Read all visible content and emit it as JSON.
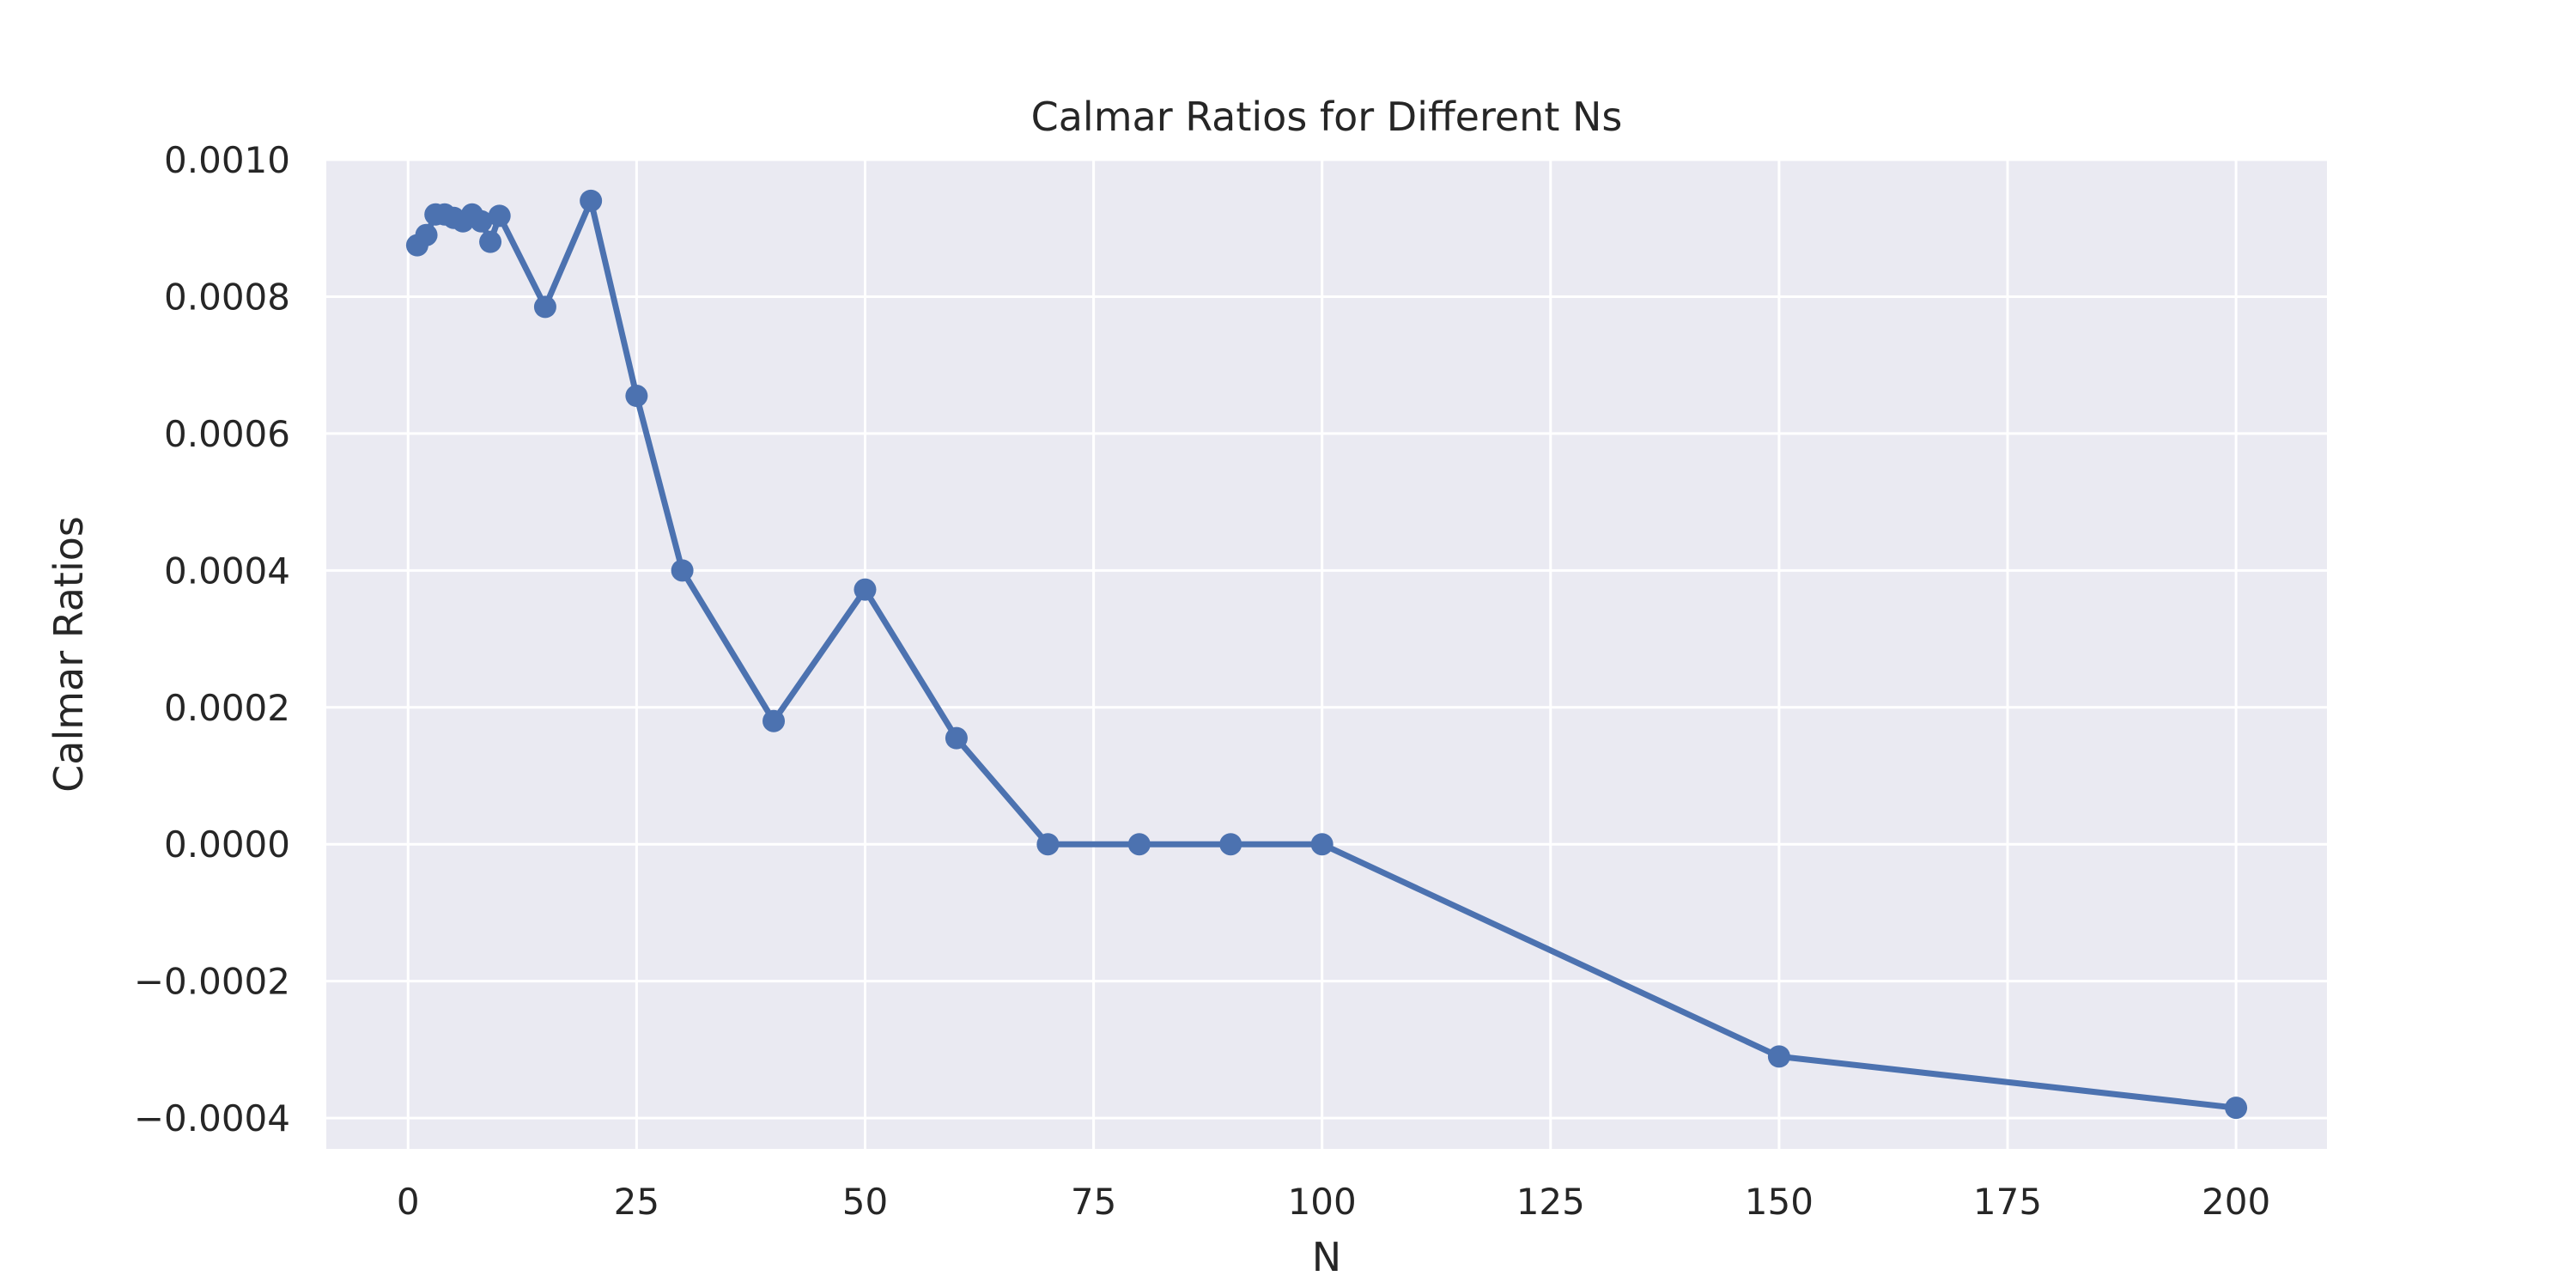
{
  "chart_data": {
    "type": "line",
    "title": "Calmar Ratios for Different Ns",
    "xlabel": "N",
    "ylabel": "Calmar Ratios",
    "xlim": [
      -8.95,
      209.95
    ],
    "ylim": [
      -0.000445,
      0.001
    ],
    "x_ticks": [
      0,
      25,
      50,
      75,
      100,
      125,
      150,
      175,
      200
    ],
    "x_tick_labels": [
      "0",
      "25",
      "50",
      "75",
      "100",
      "125",
      "150",
      "175",
      "200"
    ],
    "y_ticks": [
      -0.0004,
      -0.0002,
      0.0,
      0.0002,
      0.0004,
      0.0006,
      0.0008,
      0.001
    ],
    "y_tick_labels": [
      "−0.0004",
      "−0.0002",
      "0.0000",
      "0.0002",
      "0.0004",
      "0.0006",
      "0.0008",
      "0.0010"
    ],
    "grid": true,
    "colors": {
      "line": "#4c72b0",
      "plot_bg": "#eaeaf2",
      "grid": "#ffffff",
      "text": "#262626"
    },
    "series": [
      {
        "x": [
          1,
          2,
          3,
          4,
          5,
          6,
          7,
          8,
          9,
          10,
          15,
          20,
          25,
          30,
          40,
          50,
          60,
          70,
          80,
          90,
          100,
          150,
          200
        ],
        "y": [
          0.000875,
          0.00089,
          0.00092,
          0.00092,
          0.000915,
          0.00091,
          0.00092,
          0.00091,
          0.00088,
          0.000918,
          0.000785,
          0.00094,
          0.000655,
          0.0004,
          0.00018,
          0.000372,
          0.000155,
          0.0,
          0.0,
          0.0,
          0.0,
          -0.00031,
          -0.000385
        ]
      }
    ]
  }
}
